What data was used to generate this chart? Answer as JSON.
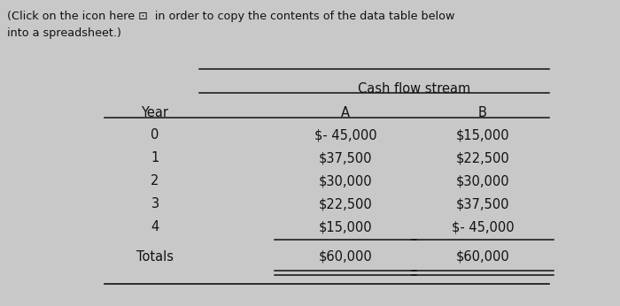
{
  "header_text": "(Click on the icon here ⊡  in order to copy the contents of the data table below\ninto a spreadsheet.)",
  "cash_flow_header": "Cash flow stream",
  "col_headers": [
    "Year",
    "A",
    "B"
  ],
  "rows": [
    [
      "0",
      "$- 45,000",
      "$15,000"
    ],
    [
      "1",
      "$37,500",
      "$22,500"
    ],
    [
      "2",
      "$30,000",
      "$30,000"
    ],
    [
      "3",
      "$22,500",
      "$37,500"
    ],
    [
      "4",
      "$15,000",
      "$- 45,000"
    ]
  ],
  "totals_label": "Totals",
  "totals_values": [
    "$60,000",
    "$60,000"
  ],
  "bg_color": "#c8c8c8",
  "text_color": "#111111",
  "font_size": 10.5
}
